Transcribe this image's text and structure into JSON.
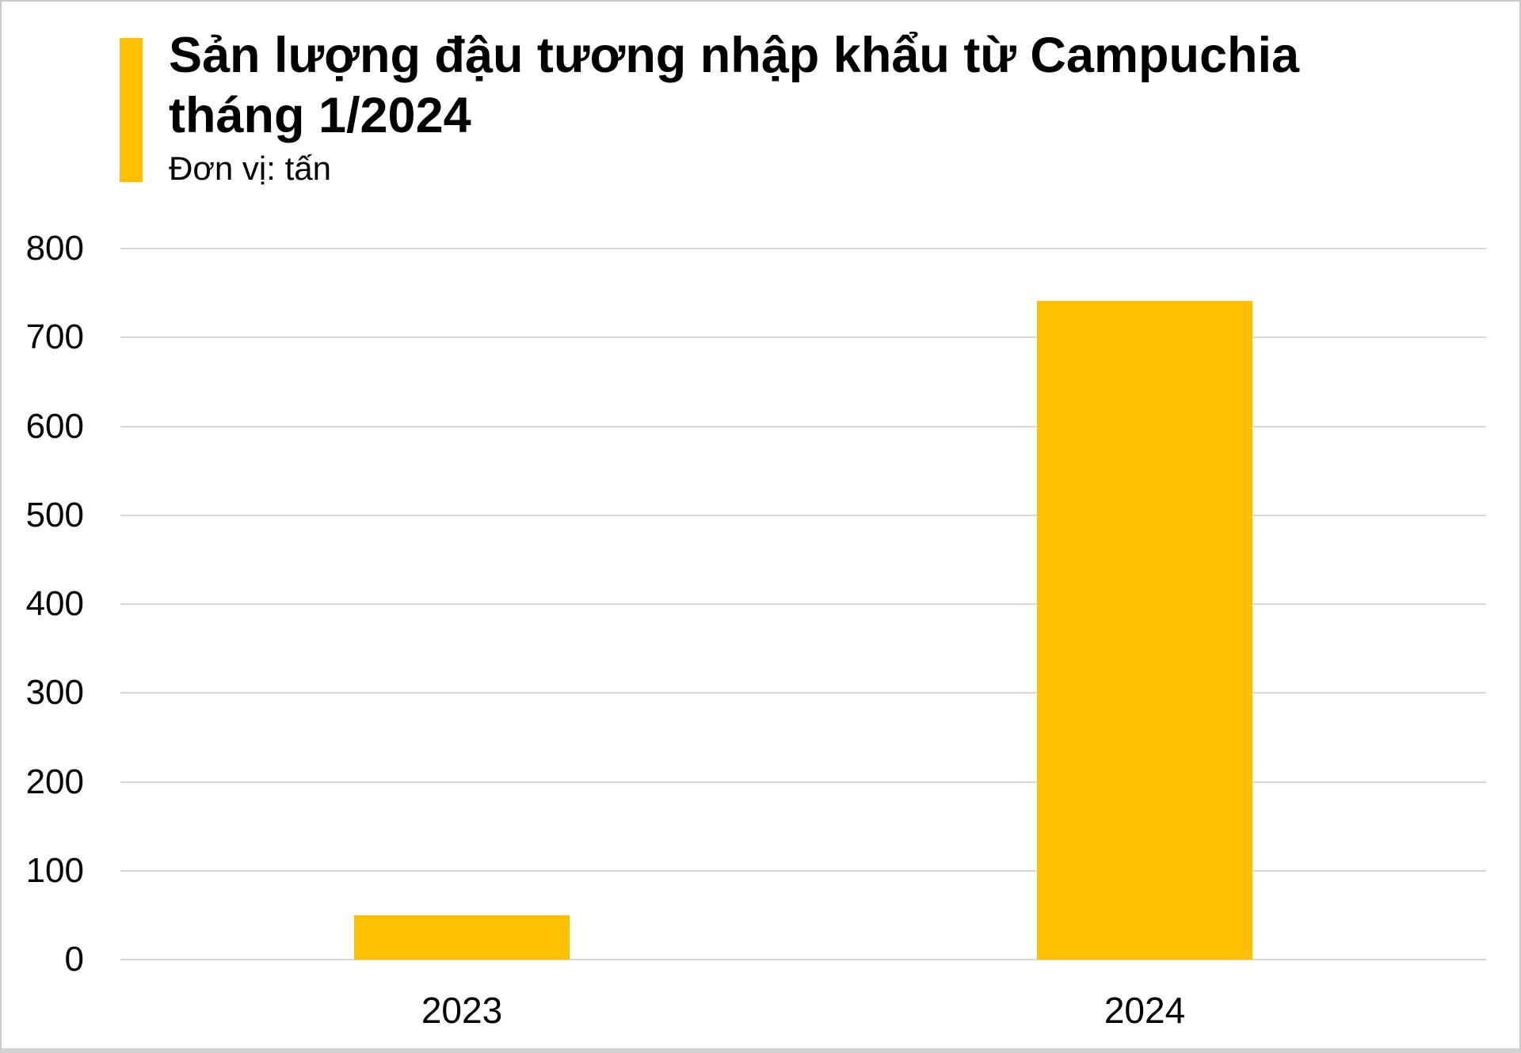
{
  "header": {
    "title_line1": "Sản lượng đậu tương nhập khẩu từ Campuchia",
    "title_line2": "tháng 1/2024",
    "subtitle": "Đơn vị: tấn"
  },
  "colors": {
    "accent": "#FFC000",
    "bar": "#FFC000",
    "gridline": "#D9D9D9",
    "text": "#000000"
  },
  "chart_data": {
    "type": "bar",
    "title": "Sản lượng đậu tương nhập khẩu từ Campuchia tháng 1/2024",
    "unit_label": "Đơn vị: tấn",
    "categories": [
      "2023",
      "2024"
    ],
    "values": [
      50,
      741
    ],
    "xlabel": "",
    "ylabel": "tấn",
    "ylim": [
      0,
      800
    ],
    "yticks": [
      0,
      100,
      200,
      300,
      400,
      500,
      600,
      700,
      800
    ],
    "grid": true,
    "legend": "none",
    "bar_color": "#FFC000"
  }
}
